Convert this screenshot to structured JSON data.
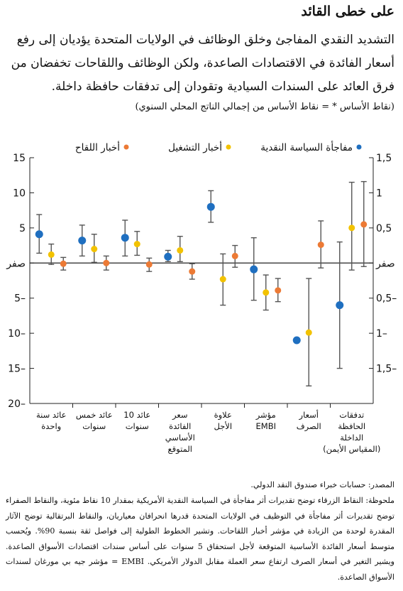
{
  "header": {
    "title": "على خطى القائد",
    "subtitle": "التشديد النقدي المفاجئ وخلق الوظائف في الولايات المتحدة يؤديان إلى رفع أسعار الفائدة في الاقتصادات الصاعدة، ولكن الوظائف واللقاحات تخفضان من فرق العائد على السندات السيادية وتقودان إلى تدفقات حافظة داخلة.",
    "units": "(نقاط الأساس * = نقاط الأساس من إجمالي الناتج المحلي السنوي)"
  },
  "footer": {
    "source": "المصدر: حسابات خبراء صندوق النقد الدولي.",
    "note": "ملحوظة: النقاط الزرقاء توضح تقديرات أثر مفاجأة في السياسة النقدية الأمريكية بمقدار 10 نقاط مئوية، والنقاط الصفراء توضح تقديرات أثر مفاجأة في التوظيف في الولايات المتحدة قدرها انحرافان معياريان، والنقاط البرتقالية توضح الآثار المقدرة لوحدة من الزيادة في مؤشر أخبار اللقاحات. وتشير الخطوط الطولية إلى فواصل ثقة بنسبة 90%. ويُحسب متوسط أسعار الفائدة الأساسية المتوقعة لأجل استحقاق 5 سنوات على أساس سندات اقتصادات الأسواق الصاعدة. ويشير التغير في أسعار الصرف ارتفاع سعر العملة مقابل الدولار الأمريكي. EMBI = مؤشر جيه بي مورغان لسندات الأسواق الصاعدة."
  },
  "chart_data": {
    "type": "scatter",
    "title": "",
    "xlabel": "",
    "ylabel": "",
    "grid": false,
    "legend_position": "top",
    "colors": {
      "policy": "#1f6fc0",
      "employment": "#f2c200",
      "vaccine": "#ec7a35",
      "errorbar": "#555555"
    },
    "categories": [
      "عائد سنة واحدة",
      "عائد خمس سنوات",
      "عائد 10 سنوات",
      "سعر الفائدة الأساسي المتوقع",
      "علاوة الأجل",
      "مؤشر EMBI",
      "أسعار الصرف",
      "تدفقات الحافظة الداخلة (المقياس الأيمن)"
    ],
    "category_lines": [
      [
        "عائد سنة",
        "واحدة"
      ],
      [
        "عائد خمس",
        "سنوات"
      ],
      [
        "عائد 10",
        "سنوات"
      ],
      [
        "سعر",
        "الفائدة",
        "الأساسي",
        "المتوقع"
      ],
      [
        "علاوة",
        "الأجل"
      ],
      [
        "مؤشر",
        "EMBI"
      ],
      [
        "أسعار",
        "الصرف"
      ],
      [
        "تدفقات",
        "الحافظة",
        "الداخلة",
        "(المقياس الأيمن)"
      ]
    ],
    "left_axis": {
      "ylim": [
        -20,
        15
      ],
      "ticks": [
        "15",
        "10",
        "5",
        "صفر",
        "5–",
        "10–",
        "15–",
        "20–"
      ],
      "tick_values": [
        15,
        10,
        5,
        0,
        -5,
        -10,
        -15,
        -20
      ]
    },
    "right_axis": {
      "ylim": [
        -2,
        1.5
      ],
      "ticks": [
        "2",
        "1,5",
        "1",
        "0,5",
        "صفر",
        "0,5–",
        "1–",
        "1,5–"
      ],
      "tick_values": [
        2,
        1.5,
        1,
        0.5,
        0,
        -0.5,
        -1,
        -1.5
      ]
    },
    "series": [
      {
        "key": "policy",
        "name": "مفاجأة السياسة النقدية",
        "axis": [
          "left",
          "left",
          "left",
          "left",
          "left",
          "left",
          "left",
          "right"
        ],
        "values": [
          4.1,
          3.2,
          3.6,
          0.9,
          8.0,
          -0.9,
          -11.0,
          -0.6
        ],
        "ci_low": [
          1.4,
          1.0,
          1.0,
          0.2,
          5.8,
          -5.3,
          null,
          -1.5
        ],
        "ci_high": [
          6.9,
          5.4,
          6.1,
          1.8,
          10.3,
          3.6,
          null,
          0.3
        ]
      },
      {
        "key": "employment",
        "name": "أخبار التشغيل",
        "axis": [
          "left",
          "left",
          "left",
          "left",
          "left",
          "left",
          "left",
          "right"
        ],
        "values": [
          1.2,
          2.0,
          2.7,
          1.8,
          -2.3,
          -4.2,
          -9.9,
          0.5
        ],
        "ci_low": [
          -0.2,
          0.1,
          1.1,
          0.2,
          -6.0,
          -6.7,
          -17.5,
          -0.1
        ],
        "ci_high": [
          2.7,
          4.1,
          4.5,
          3.8,
          1.3,
          -1.7,
          -2.2,
          1.15
        ]
      },
      {
        "key": "vaccine",
        "name": "أخبار اللقاح",
        "axis": [
          "left",
          "left",
          "left",
          "left",
          "left",
          "left",
          "left",
          "right"
        ],
        "values": [
          -0.1,
          0.0,
          -0.2,
          -1.2,
          1.0,
          -3.9,
          2.6,
          0.55
        ],
        "ci_low": [
          -1.0,
          -1.0,
          -1.2,
          -2.3,
          -0.6,
          -5.5,
          -0.7,
          -0.05
        ],
        "ci_high": [
          0.8,
          1.0,
          0.7,
          -0.1,
          2.5,
          -2.2,
          6.0,
          1.16
        ]
      }
    ]
  }
}
